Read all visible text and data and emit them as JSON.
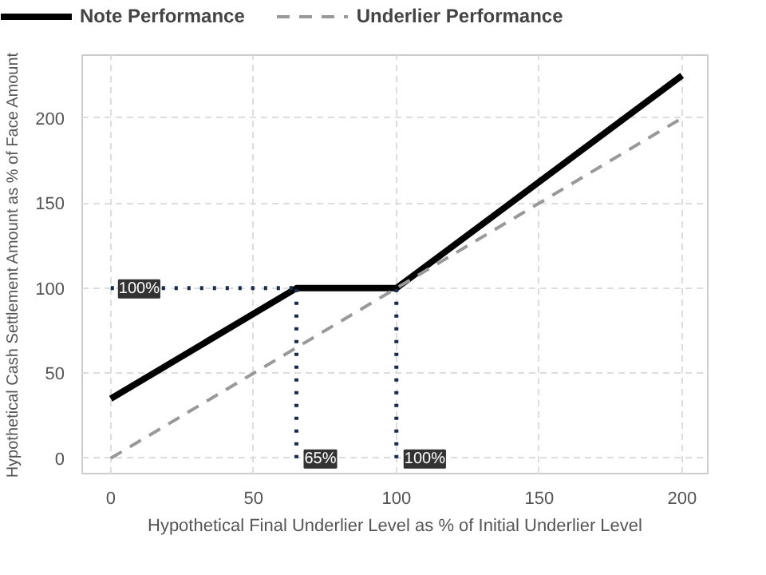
{
  "chart_data": {
    "type": "line",
    "xlabel": "Hypothetical Final Underlier Level as % of Initial Underlier Level",
    "ylabel": "Hypothetical Cash Settlement Amount as % of Face Amount",
    "series": [
      {
        "name": "Note Performance",
        "color": "#000000",
        "x": [
          0,
          65,
          100,
          200
        ],
        "values": [
          35,
          100,
          100,
          225
        ],
        "line_style": "solid"
      },
      {
        "name": "Underlier Performance",
        "color": "#999999",
        "x": [
          0,
          200
        ],
        "values": [
          0,
          200
        ],
        "line_style": "dashed"
      },
      {
        "color": "#1a2a4a",
        "x": [
          0,
          65
        ],
        "values": [
          100,
          100
        ],
        "line_style": "dotted"
      },
      {
        "color": "#1a2a4a",
        "x": [
          65,
          65
        ],
        "values": [
          0,
          100
        ],
        "line_style": "dotted"
      },
      {
        "color": "#1a2a4a",
        "x": [
          100,
          100
        ],
        "values": [
          0,
          100
        ],
        "line_style": "dotted"
      }
    ],
    "annotations": [
      {
        "text": "100%",
        "x": 0,
        "y": 100
      },
      {
        "text": "65%",
        "x": 65,
        "y": 0
      },
      {
        "text": "100%",
        "x": 100,
        "y": 0
      }
    ],
    "xlim": [
      -10,
      209
    ],
    "ylim": [
      -9,
      237
    ],
    "xticks": [
      0,
      50,
      100,
      150,
      200
    ],
    "yticks": [
      0,
      50,
      100,
      150,
      200
    ],
    "grid": true,
    "legend": "top"
  }
}
